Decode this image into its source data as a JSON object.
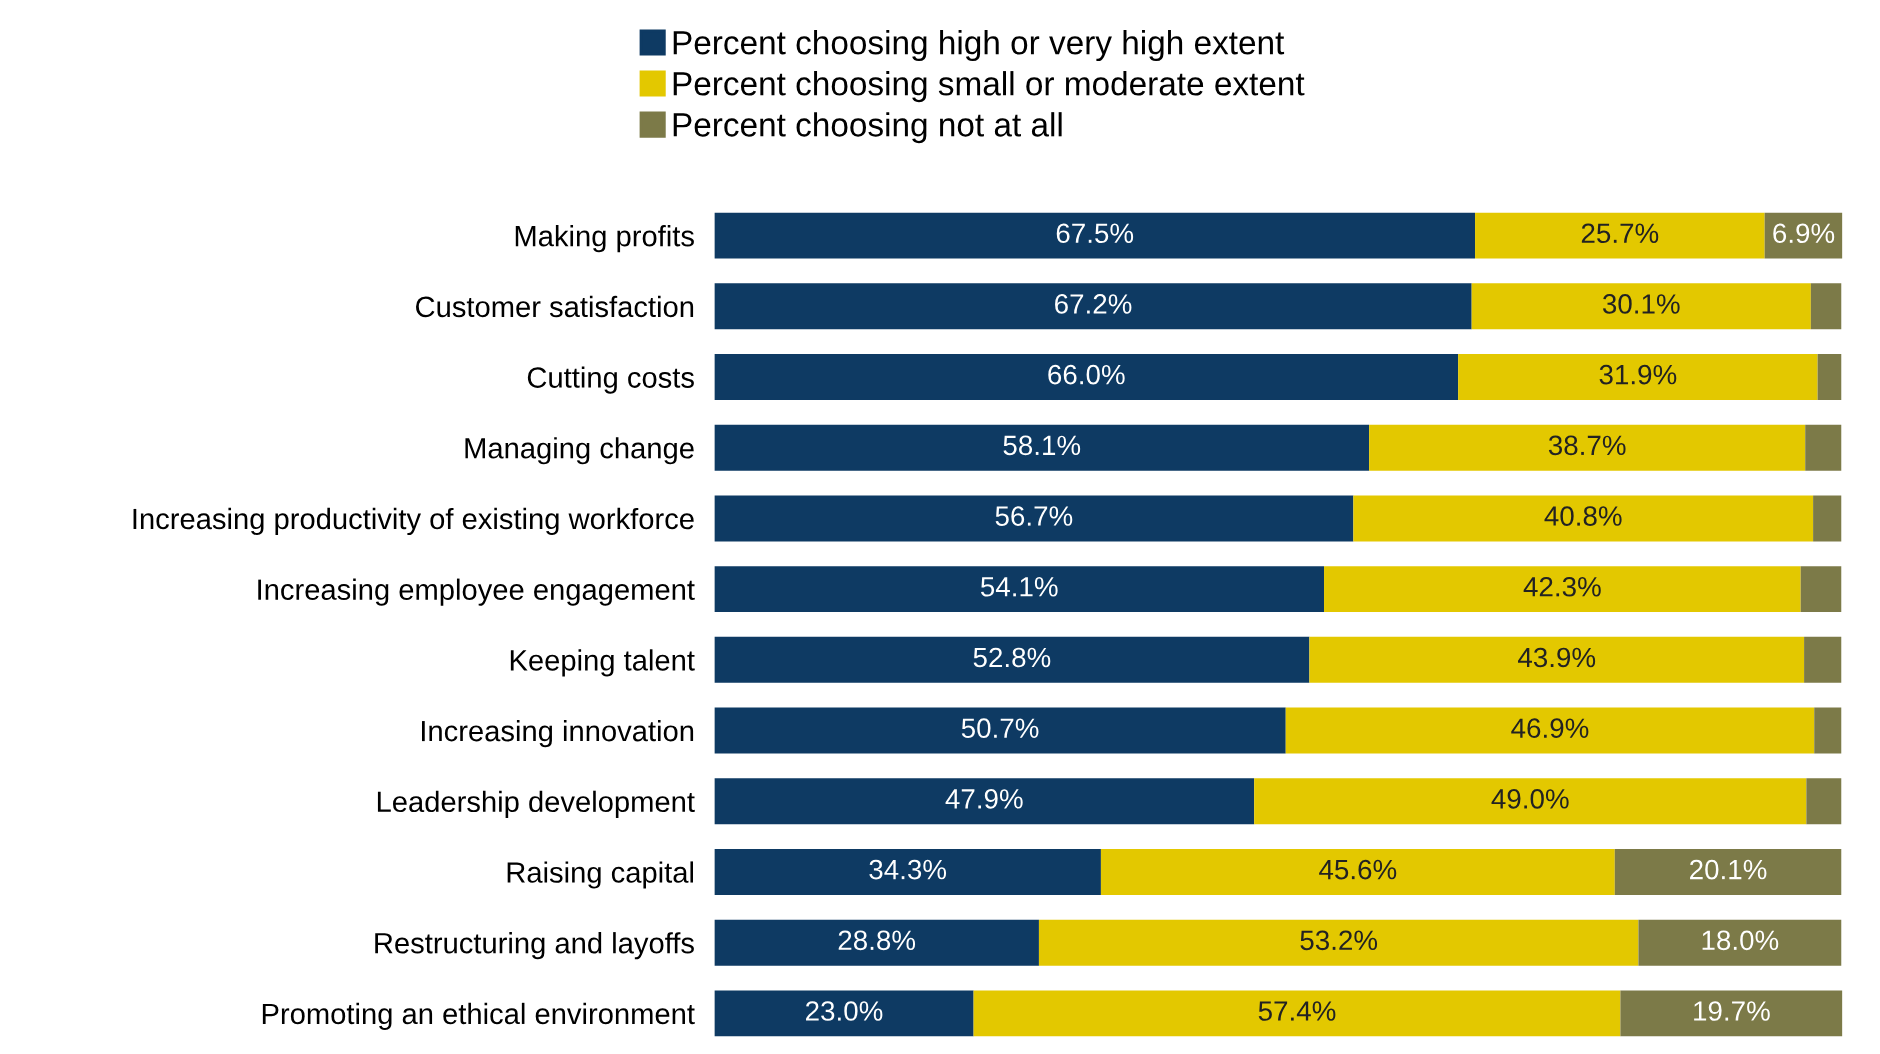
{
  "chart_data": {
    "type": "bar",
    "orientation": "horizontal",
    "stacked": true,
    "legend": "top",
    "tick_labels": "y",
    "xlim": [
      0,
      100.1
    ],
    "categories": [
      "Making profits",
      "Customer satisfaction",
      "Cutting costs",
      "Managing change",
      "Increasing productivity of existing workforce",
      "Increasing employee engagement",
      "Keeping talent",
      "Increasing innovation",
      "Leadership development",
      "Raising capital",
      "Restructuring and layoffs",
      "Promoting an ethical environment"
    ],
    "series": [
      {
        "name": "Percent choosing high or very high extent",
        "color": "#0e3a63",
        "values": [
          67.5,
          67.2,
          66.0,
          58.1,
          56.7,
          54.1,
          52.8,
          50.7,
          47.9,
          34.3,
          28.8,
          23.0
        ],
        "value_labels": [
          "67.5%",
          "67.2%",
          "66.0%",
          "58.1%",
          "56.7%",
          "54.1%",
          "52.8%",
          "50.7%",
          "47.9%",
          "34.3%",
          "28.8%",
          "23.0%"
        ]
      },
      {
        "name": "Percent choosing small or moderate extent",
        "color": "#e3c800",
        "values": [
          25.7,
          30.1,
          31.9,
          38.7,
          40.8,
          42.3,
          43.9,
          46.9,
          49.0,
          45.6,
          53.2,
          57.4
        ],
        "value_labels": [
          "25.7%",
          "30.1%",
          "31.9%",
          "38.7%",
          "40.8%",
          "42.3%",
          "43.9%",
          "46.9%",
          "49.0%",
          "45.6%",
          "53.2%",
          "57.4%"
        ]
      },
      {
        "name": "Percent choosing not at all",
        "color": "#7c7a48",
        "values": [
          6.9,
          2.7,
          2.1,
          3.2,
          2.5,
          3.6,
          3.3,
          2.4,
          3.1,
          20.1,
          18.0,
          19.7
        ],
        "value_labels": [
          "6.9%",
          null,
          null,
          null,
          null,
          null,
          null,
          null,
          null,
          "20.1%",
          "18.0%",
          "19.7%"
        ]
      }
    ]
  }
}
